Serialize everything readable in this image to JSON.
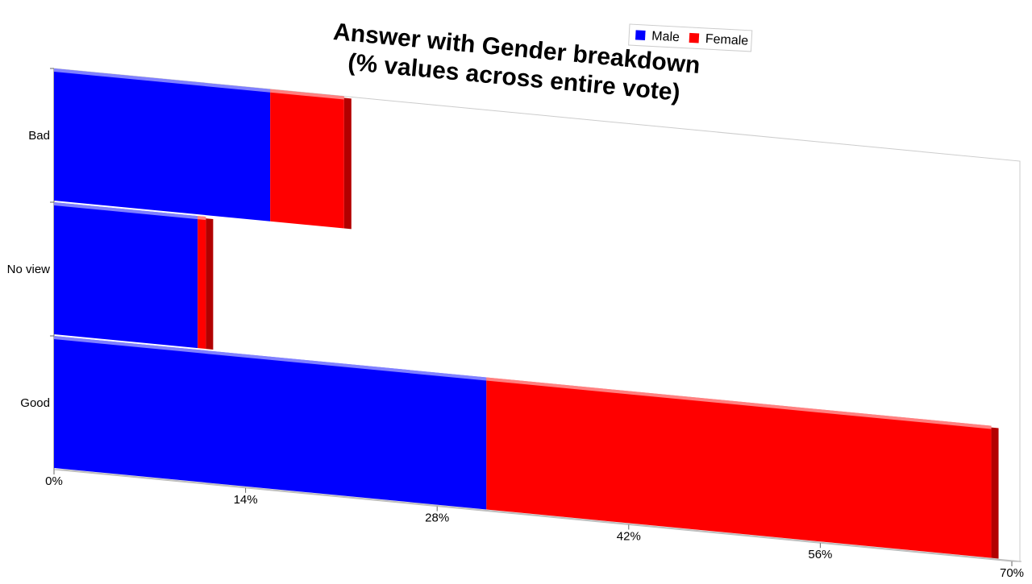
{
  "chart_data": {
    "type": "bar",
    "orientation": "horizontal",
    "stacked": true,
    "title": "Answer with Gender breakdown\n(% values across entire vote)",
    "categories": [
      "Bad",
      "No view",
      "Good"
    ],
    "series": [
      {
        "name": "Male",
        "color": "#0000ff",
        "values": [
          15.8,
          10.5,
          31.6
        ]
      },
      {
        "name": "Female",
        "color": "#ff0000",
        "values": [
          5.4,
          0.6,
          36.9
        ]
      }
    ],
    "xlim": [
      0,
      70
    ],
    "xticks": [
      {
        "value": 0,
        "label": "0%"
      },
      {
        "value": 14,
        "label": "14%"
      },
      {
        "value": 28,
        "label": "28%"
      },
      {
        "value": 42,
        "label": "42%"
      },
      {
        "value": 56,
        "label": "56%"
      },
      {
        "value": 70,
        "label": "70%"
      }
    ],
    "legend": "top"
  }
}
